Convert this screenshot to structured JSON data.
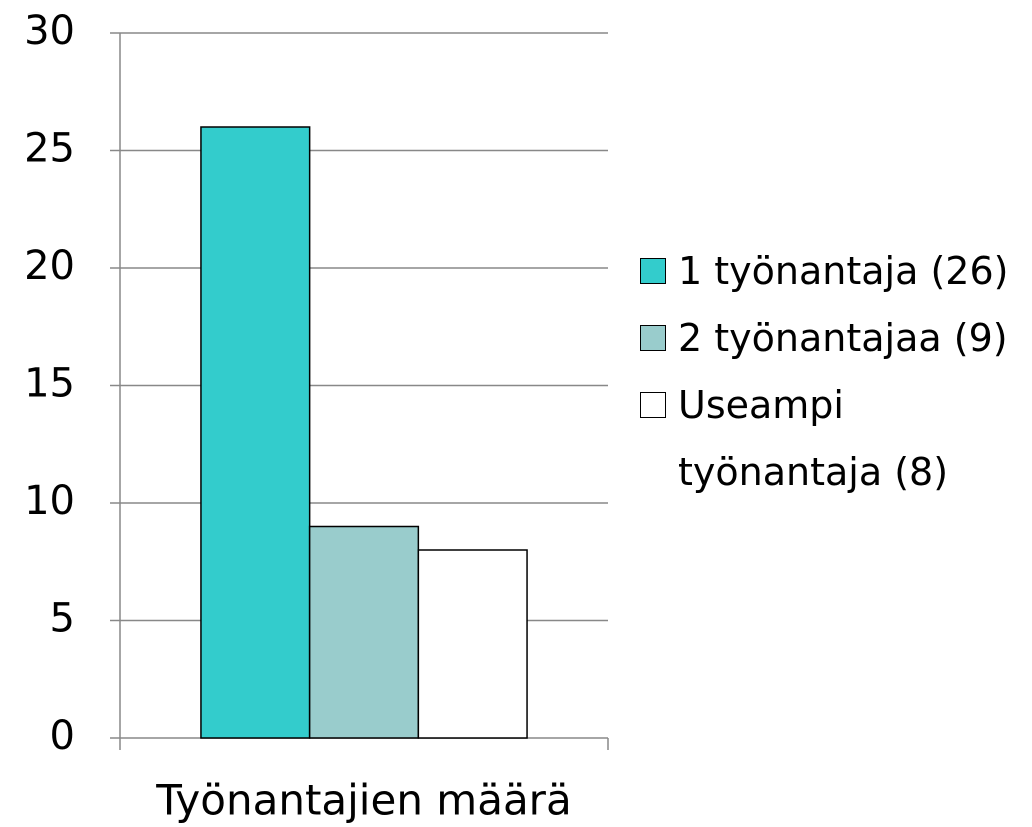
{
  "chart_data": {
    "type": "bar",
    "categories": [
      "Työnantajien määrä"
    ],
    "series": [
      {
        "name": "1 työnantaja (26)",
        "color": "#33cccc",
        "values": [
          26
        ]
      },
      {
        "name": "2 työnantajaa (9)",
        "color": "#99cccc",
        "values": [
          9
        ]
      },
      {
        "name": "Useampi työnantaja (8)",
        "color": "#ffffff",
        "values": [
          8
        ]
      }
    ],
    "ylim": [
      0,
      30
    ],
    "yticks": [
      0,
      5,
      10,
      15,
      20,
      25,
      30
    ],
    "grid": true,
    "legend": "right"
  }
}
